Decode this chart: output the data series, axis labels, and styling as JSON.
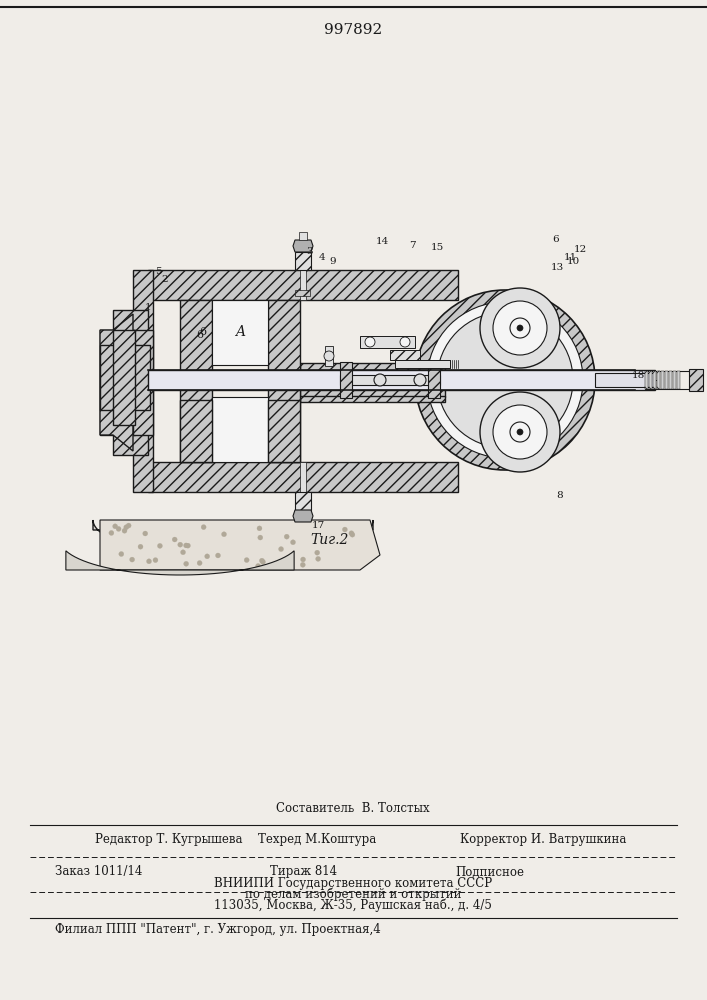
{
  "title_number": "997892",
  "fig_label": "Τиг.2",
  "bg_color": "#f0ede8",
  "line_color": "#1a1a1a",
  "fill_hatch": "#c8c8c8",
  "fill_white": "#f5f5f5",
  "fill_light": "#e0e0e0",
  "compiler_line": "Составитель  В. Толстых",
  "editor_line": "Редактор Т. Кугрышева",
  "techred_line": "Техред М.Коштура",
  "corrector_line": "Корректор И. Ватрушкина",
  "order_line": "Заказ 1011/14",
  "tirazh_line": "Тираж 814",
  "podpisnoe_line": "Подписное",
  "vnipi_line1": "ВНИИПИ Государственного комитета СССР",
  "vnipi_line2": "по делам изобретений и открытий",
  "address_line": "113035, Москва, Ж-35, Раушская наб., д. 4/5",
  "filial_line": "Филиал ППП \"Патент\", г. Ужгород, ул. Проектная,4"
}
